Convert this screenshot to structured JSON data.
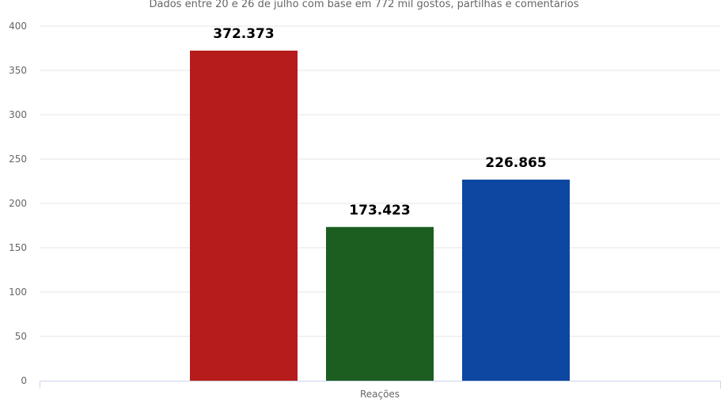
{
  "chart_data": {
    "type": "bar",
    "subtitle": "Dados entre 20 e 26 de julho com base em 772 mil gostos, partilhas e comentários",
    "categories": [
      "Reações"
    ],
    "series": [
      {
        "value": 372.373,
        "label": "372.373",
        "color": "#b71c1c"
      },
      {
        "value": 173.423,
        "label": "173.423",
        "color": "#1b5e20"
      },
      {
        "value": 226.865,
        "label": "226.865",
        "color": "#0d47a1"
      }
    ],
    "ylim": [
      0,
      400
    ],
    "yticks": [
      0,
      50,
      100,
      150,
      200,
      250,
      300,
      350,
      400
    ],
    "grid": true,
    "legend": "none"
  }
}
